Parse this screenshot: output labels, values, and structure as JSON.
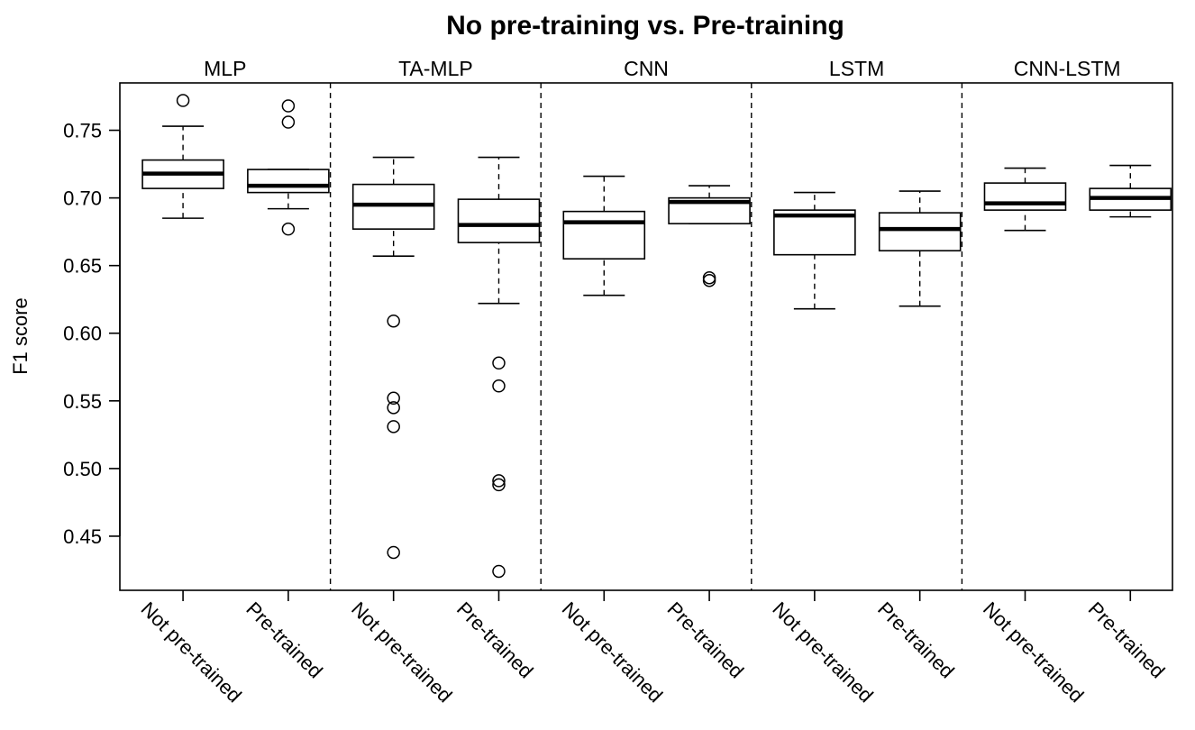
{
  "chart_data": {
    "type": "boxplot",
    "title": "No pre-training vs. Pre-training",
    "ylabel": "F1 score",
    "ylim": [
      0.41,
      0.785
    ],
    "yticks": [
      0.45,
      0.5,
      0.55,
      0.6,
      0.65,
      0.7,
      0.75
    ],
    "yticklabels": [
      "0.45",
      "0.50",
      "0.55",
      "0.60",
      "0.65",
      "0.70",
      "0.75"
    ],
    "grid": false,
    "groups": [
      {
        "name": "MLP",
        "boxes": [
          {
            "label": "Not pre-trained",
            "min": 0.685,
            "q1": 0.707,
            "median": 0.718,
            "q3": 0.728,
            "max": 0.753,
            "outliers": [
              0.772
            ]
          },
          {
            "label": "Pre-trained",
            "min": 0.692,
            "q1": 0.704,
            "median": 0.709,
            "q3": 0.721,
            "max": 0.721,
            "outliers": [
              0.768,
              0.756,
              0.677
            ]
          }
        ]
      },
      {
        "name": "TA-MLP",
        "boxes": [
          {
            "label": "Not pre-trained",
            "min": 0.657,
            "q1": 0.677,
            "median": 0.695,
            "q3": 0.71,
            "max": 0.73,
            "outliers": [
              0.609,
              0.552,
              0.545,
              0.531,
              0.438
            ]
          },
          {
            "label": "Pre-trained",
            "min": 0.622,
            "q1": 0.667,
            "median": 0.68,
            "q3": 0.699,
            "max": 0.73,
            "outliers": [
              0.578,
              0.561,
              0.491,
              0.488,
              0.424
            ]
          }
        ]
      },
      {
        "name": "CNN",
        "boxes": [
          {
            "label": "Not pre-trained",
            "min": 0.628,
            "q1": 0.655,
            "median": 0.682,
            "q3": 0.69,
            "max": 0.716,
            "outliers": []
          },
          {
            "label": "Pre-trained",
            "min": 0.681,
            "q1": 0.681,
            "median": 0.697,
            "q3": 0.7,
            "max": 0.709,
            "outliers": [
              0.641,
              0.639
            ]
          }
        ]
      },
      {
        "name": "LSTM",
        "boxes": [
          {
            "label": "Not pre-trained",
            "min": 0.618,
            "q1": 0.658,
            "median": 0.687,
            "q3": 0.691,
            "max": 0.704,
            "outliers": []
          },
          {
            "label": "Pre-trained",
            "min": 0.62,
            "q1": 0.661,
            "median": 0.677,
            "q3": 0.689,
            "max": 0.705,
            "outliers": []
          }
        ]
      },
      {
        "name": "CNN-LSTM",
        "boxes": [
          {
            "label": "Not pre-trained",
            "min": 0.676,
            "q1": 0.691,
            "median": 0.696,
            "q3": 0.711,
            "max": 0.722,
            "outliers": []
          },
          {
            "label": "Pre-trained",
            "min": 0.686,
            "q1": 0.691,
            "median": 0.7,
            "q3": 0.707,
            "max": 0.724,
            "outliers": []
          }
        ]
      }
    ]
  }
}
